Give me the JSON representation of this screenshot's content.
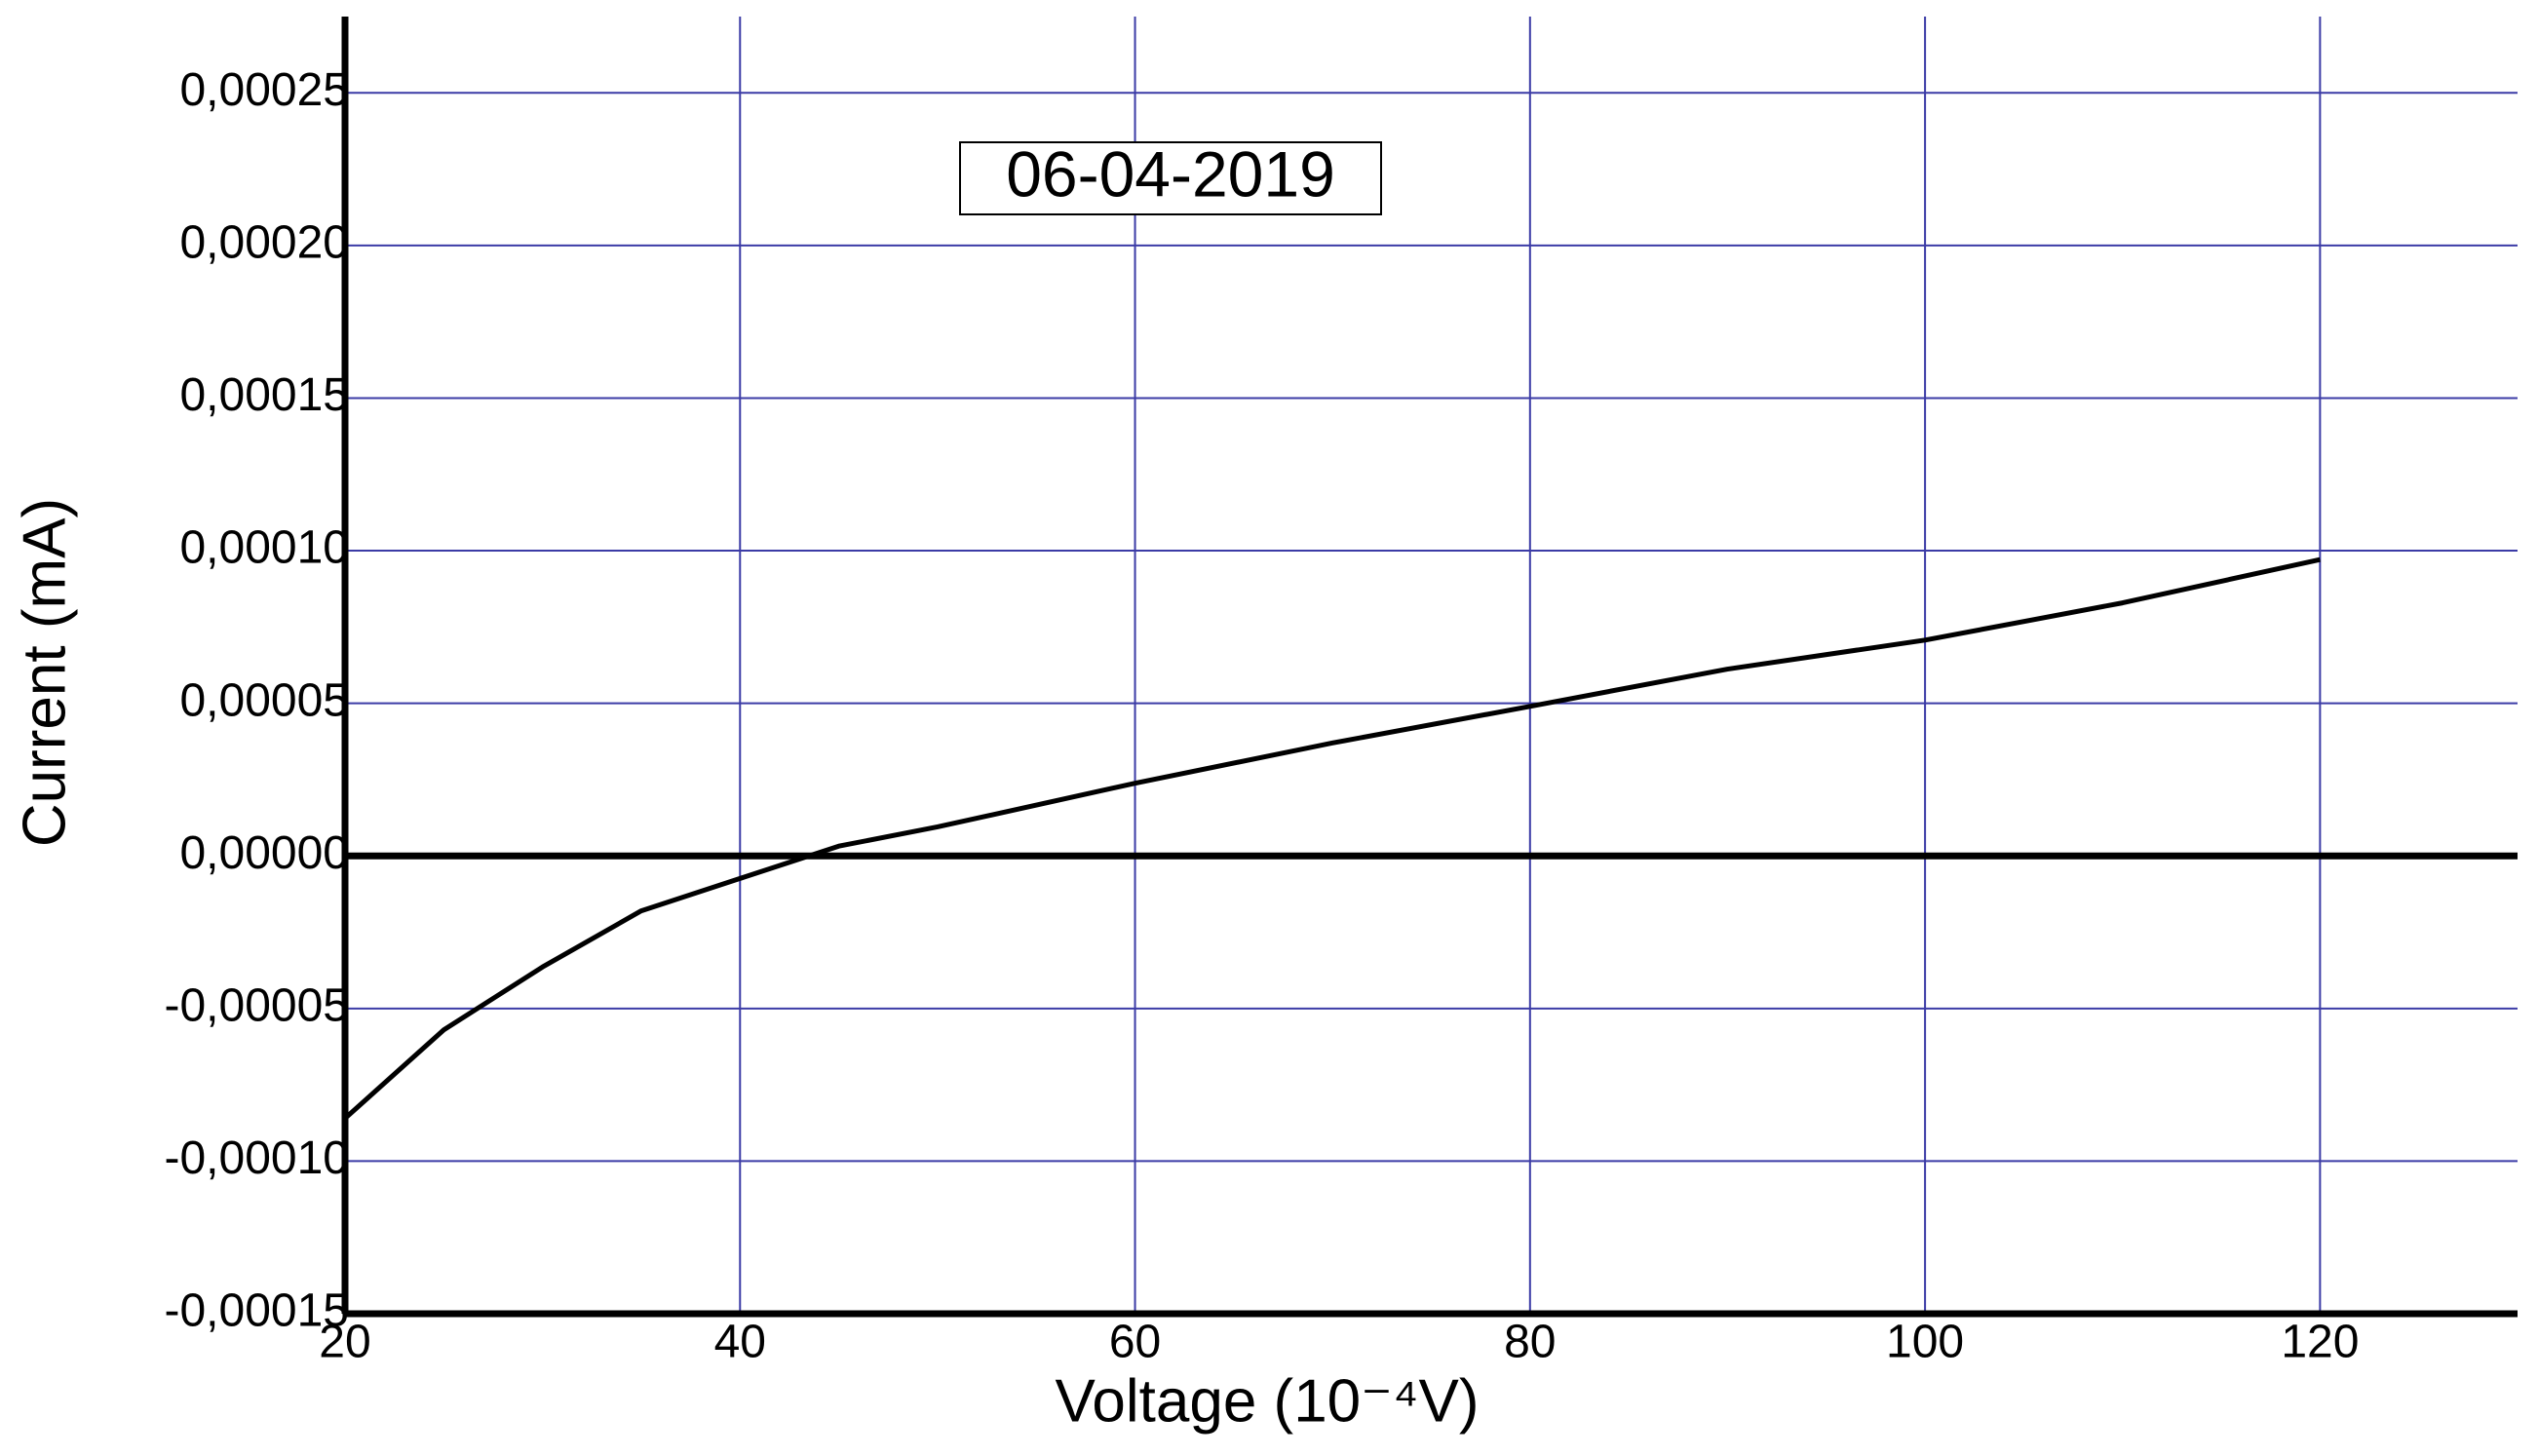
{
  "chart_data": {
    "type": "line",
    "x_label": "Voltage (10⁻⁴V)",
    "y_label": "Current (mA)",
    "annotation": "06-04-2019",
    "x": [
      20,
      25,
      30,
      35,
      40,
      45,
      50,
      60,
      70,
      80,
      90,
      100,
      110,
      120
    ],
    "series": [
      {
        "color": "#000000",
        "values": [
          -8.6e-05,
          -5.7e-05,
          -3.64e-05,
          -1.8e-05,
          -7.4e-06,
          3.2e-06,
          9.5e-06,
          2.38e-05,
          3.7e-05,
          4.9e-05,
          6.12e-05,
          7.07e-05,
          8.29e-05,
          9.71e-05
        ]
      }
    ],
    "xlim": [
      20,
      130
    ],
    "ylim": [
      -0.00015,
      0.000275
    ],
    "xticks": [
      20,
      40,
      60,
      80,
      100,
      120
    ],
    "yticks": [
      {
        "value": -0.00015,
        "label": "-0,00015"
      },
      {
        "value": -0.0001,
        "label": "-0,00010"
      },
      {
        "value": -5e-05,
        "label": "-0,00005"
      },
      {
        "value": 0,
        "label": "0,00000"
      },
      {
        "value": 5e-05,
        "label": "0,00005"
      },
      {
        "value": 0.0001,
        "label": "0,00010"
      },
      {
        "value": 0.00015,
        "label": "0,00015"
      },
      {
        "value": 0.0002,
        "label": "0,00020"
      },
      {
        "value": 0.00025,
        "label": "0,00025"
      }
    ],
    "grid": true,
    "grid_color": "#3b3ba6"
  }
}
